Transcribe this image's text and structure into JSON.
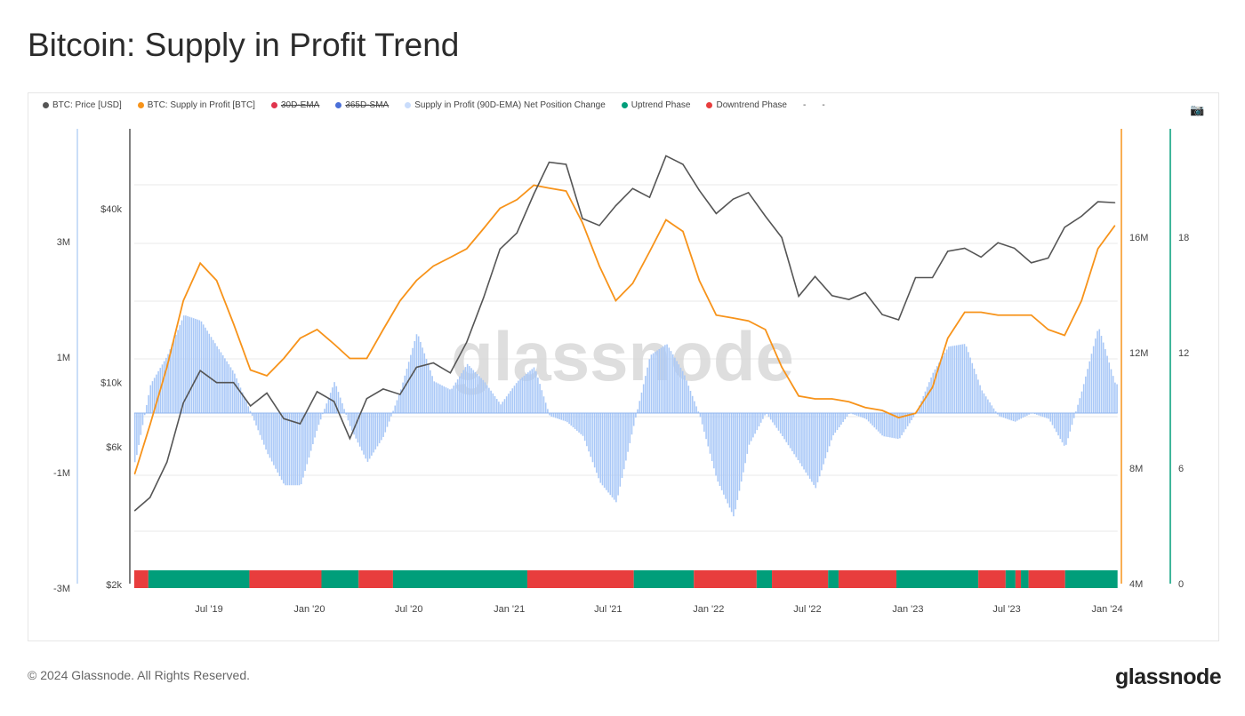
{
  "title": "Bitcoin: Supply in Profit Trend",
  "footer": "© 2024 Glassnode. All Rights Reserved.",
  "logo": "glassnode",
  "watermark": "glassnode",
  "legend": [
    {
      "label": "BTC: Price [USD]",
      "color": "#555555",
      "strike": false
    },
    {
      "label": "BTC: Supply in Profit [BTC]",
      "color": "#f7931a",
      "strike": false
    },
    {
      "label": "30D-EMA",
      "color": "#e0344d",
      "strike": true
    },
    {
      "label": "365D-SMA",
      "color": "#4a6fd8",
      "strike": true
    },
    {
      "label": "Supply in Profit (90D-EMA) Net Position Change",
      "color": "#c9dcfb",
      "strike": false
    },
    {
      "label": "Uptrend Phase",
      "color": "#009e7a",
      "strike": false
    },
    {
      "label": "Downtrend Phase",
      "color": "#e83d3d",
      "strike": false
    },
    {
      "label": "-",
      "color": "",
      "strike": false
    },
    {
      "label": "-",
      "color": "",
      "strike": false
    }
  ],
  "camera_icon": "camera-icon",
  "chart_data": {
    "type": "line",
    "x_ticks": [
      "Jul '19",
      "Jan '20",
      "Jul '20",
      "Jan '21",
      "Jul '21",
      "Jan '22",
      "Jul '22",
      "Jan '23",
      "Jul '23",
      "Jan '24"
    ],
    "x_tick_dates": [
      "2019-07-01",
      "2020-01-01",
      "2020-07-01",
      "2021-01-01",
      "2021-07-01",
      "2022-01-01",
      "2022-07-01",
      "2023-01-01",
      "2023-07-01",
      "2024-01-01"
    ],
    "x_range": [
      "2019-02-14",
      "2024-01-20"
    ],
    "start_month": "2019-02",
    "price_axis": {
      "scale": "log",
      "ticks": [
        "$2k",
        "$6k",
        "$10k",
        "$40k"
      ],
      "tick_values": [
        2000,
        6000,
        10000,
        40000
      ]
    },
    "supply_axis": {
      "ticks": [
        "4M",
        "8M",
        "12M",
        "16M"
      ],
      "tick_values": [
        4,
        8,
        12,
        16
      ],
      "range": [
        4,
        20
      ]
    },
    "net_axis": {
      "ticks": [
        "-3M",
        "-1M",
        "1M",
        "3M"
      ],
      "tick_values": [
        -3,
        -1,
        1,
        3
      ]
    },
    "phase_axis": {
      "ticks": [
        "0",
        "6",
        "12",
        "18"
      ],
      "tick_values": [
        0,
        6,
        12,
        18
      ]
    },
    "grid": true,
    "legend_position": "top",
    "series": [
      {
        "name": "BTC: Price [USD]",
        "color": "#555555",
        "values": [
          3600,
          4000,
          5300,
          8500,
          11000,
          10000,
          10000,
          8300,
          9200,
          7500,
          7200,
          9300,
          8600,
          6400,
          8800,
          9500,
          9100,
          11300,
          11700,
          10800,
          13800,
          19700,
          29000,
          33000,
          45000,
          58000,
          57000,
          37000,
          35000,
          41000,
          47000,
          43800,
          61000,
          57000,
          46300,
          38500,
          43200,
          45500,
          37700,
          31800,
          19900,
          23300,
          20000,
          19400,
          20500,
          17200,
          16500,
          23100,
          23100,
          28500,
          29200,
          27200,
          30500,
          29200,
          26000,
          27000,
          34500,
          37700,
          42300,
          42000
        ]
      },
      {
        "name": "BTC: Supply in Profit [BTC]",
        "unit": "M",
        "color": "#f7931a",
        "values": [
          7.8,
          9.5,
          11.5,
          13.8,
          15.1,
          14.5,
          13.0,
          11.4,
          11.2,
          11.8,
          12.5,
          12.8,
          12.3,
          11.8,
          11.8,
          12.8,
          13.8,
          14.5,
          15.0,
          15.3,
          15.6,
          16.3,
          17.0,
          17.3,
          17.8,
          17.7,
          17.6,
          16.5,
          15.0,
          13.8,
          14.4,
          15.5,
          16.6,
          16.2,
          14.5,
          13.3,
          13.2,
          13.1,
          12.8,
          11.5,
          10.5,
          10.4,
          10.4,
          10.3,
          10.1,
          10.0,
          9.75,
          9.9,
          10.8,
          12.5,
          13.4,
          13.4,
          13.3,
          13.3,
          13.3,
          12.8,
          12.6,
          13.8,
          15.6,
          16.4
        ]
      },
      {
        "name": "Supply in Profit (90D-EMA) Net Position Change",
        "unit": "M",
        "color": "#a9c8f7",
        "values": [
          -0.85,
          0.5,
          1.0,
          1.7,
          1.6,
          1.15,
          0.7,
          0,
          -0.7,
          -1.25,
          -1.25,
          -0.25,
          0.55,
          -0.25,
          -0.85,
          -0.4,
          0.4,
          1.4,
          0.55,
          0.4,
          0.85,
          0.55,
          0.15,
          0.55,
          0.8,
          -0.05,
          -0.15,
          -0.4,
          -1.2,
          -1.55,
          -0.25,
          1.0,
          1.2,
          0.7,
          -0.05,
          -1.15,
          -1.8,
          -0.55,
          0,
          -0.4,
          -0.85,
          -1.3,
          -0.4,
          0,
          -0.1,
          -0.4,
          -0.45,
          0,
          0.7,
          1.15,
          1.2,
          0.4,
          -0.05,
          -0.15,
          0,
          -0.1,
          -0.6,
          0.4,
          1.5,
          0.5
        ]
      }
    ],
    "phases": [
      {
        "start": "2019-02-14",
        "end": "2019-03-12",
        "type": "downtrend"
      },
      {
        "start": "2019-03-12",
        "end": "2019-09-13",
        "type": "uptrend"
      },
      {
        "start": "2019-09-13",
        "end": "2020-01-23",
        "type": "downtrend"
      },
      {
        "start": "2020-01-23",
        "end": "2020-03-31",
        "type": "uptrend"
      },
      {
        "start": "2020-03-31",
        "end": "2020-06-02",
        "type": "downtrend"
      },
      {
        "start": "2020-06-02",
        "end": "2021-02-03",
        "type": "uptrend"
      },
      {
        "start": "2021-02-03",
        "end": "2021-08-17",
        "type": "downtrend"
      },
      {
        "start": "2021-08-17",
        "end": "2021-12-05",
        "type": "uptrend"
      },
      {
        "start": "2021-12-05",
        "end": "2022-03-30",
        "type": "downtrend"
      },
      {
        "start": "2022-03-30",
        "end": "2022-04-27",
        "type": "uptrend"
      },
      {
        "start": "2022-04-27",
        "end": "2022-08-08",
        "type": "downtrend"
      },
      {
        "start": "2022-08-08",
        "end": "2022-08-27",
        "type": "uptrend"
      },
      {
        "start": "2022-08-27",
        "end": "2022-12-11",
        "type": "downtrend"
      },
      {
        "start": "2022-12-11",
        "end": "2023-05-10",
        "type": "uptrend"
      },
      {
        "start": "2023-05-10",
        "end": "2023-06-29",
        "type": "downtrend"
      },
      {
        "start": "2023-06-29",
        "end": "2023-07-17",
        "type": "uptrend"
      },
      {
        "start": "2023-07-17",
        "end": "2023-07-27",
        "type": "downtrend"
      },
      {
        "start": "2023-07-27",
        "end": "2023-08-10",
        "type": "uptrend"
      },
      {
        "start": "2023-08-10",
        "end": "2023-10-16",
        "type": "downtrend"
      },
      {
        "start": "2023-10-16",
        "end": "2024-01-20",
        "type": "uptrend"
      }
    ],
    "phase_colors": {
      "uptrend": "#009e7a",
      "downtrend": "#e83d3d"
    }
  }
}
